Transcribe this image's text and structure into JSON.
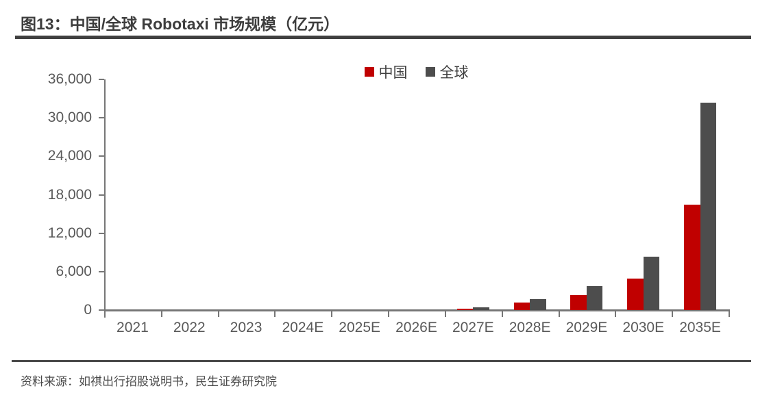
{
  "header": {
    "title": "图13：中国/全球 Robotaxi 市场规模（亿元）"
  },
  "chart_data": {
    "type": "bar",
    "title": "图13：中国/全球 Robotaxi 市场规模（亿元）",
    "unit": "亿元",
    "categories": [
      "2021",
      "2022",
      "2023",
      "2024E",
      "2025E",
      "2026E",
      "2027E",
      "2028E",
      "2029E",
      "2030E",
      "2035E"
    ],
    "series": [
      {
        "name": "中国",
        "color": "#C00000",
        "values": [
          0,
          0,
          0,
          0,
          0,
          0,
          200,
          1200,
          2400,
          4900,
          16400
        ]
      },
      {
        "name": "全球",
        "color": "#4D4D4D",
        "values": [
          0,
          0,
          0,
          0,
          0,
          0,
          400,
          1700,
          3700,
          8300,
          32400
        ]
      }
    ],
    "ylim": [
      0,
      36000
    ],
    "ytick_step": 6000,
    "ytick_labels": [
      "0",
      "6,000",
      "12,000",
      "18,000",
      "24,000",
      "30,000",
      "36,000"
    ],
    "xlabel": "",
    "ylabel": "",
    "grid": "off",
    "legend_position": "top-center"
  },
  "colors": {
    "china_bar": "#C00000",
    "global_bar": "#4D4D4D",
    "axis": "#767676",
    "tick_text": "#595959",
    "title_text": "#3D3D3D",
    "rule": "#404040"
  },
  "footer": {
    "source": "资料来源：如祺出行招股说明书，民生证券研究院"
  }
}
